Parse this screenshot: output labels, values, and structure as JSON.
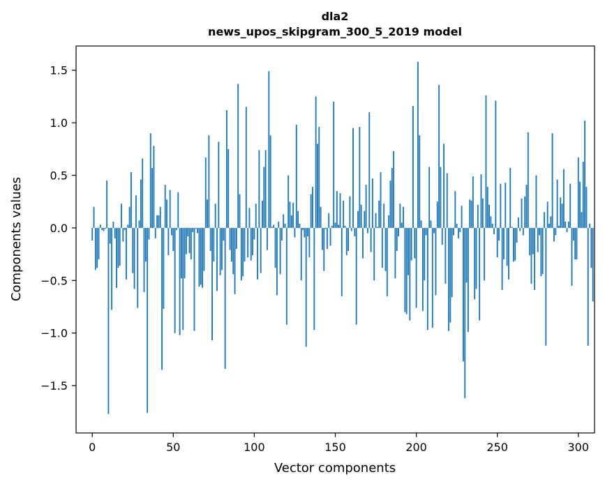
{
  "chart_data": {
    "type": "bar",
    "title_line1": "dla2",
    "title_line2": "news_upos_skipgram_300_5_2019 model",
    "xlabel": "Vector components",
    "ylabel": "Components values",
    "xlim": [
      -10,
      310
    ],
    "ylim": [
      -1.95,
      1.73
    ],
    "x_ticks": [
      0,
      50,
      100,
      150,
      200,
      250,
      300
    ],
    "x_tick_labels": [
      "0",
      "50",
      "100",
      "150",
      "200",
      "250",
      "300"
    ],
    "y_ticks": [
      -1.5,
      -1.0,
      -0.5,
      0.0,
      0.5,
      1.0,
      1.5
    ],
    "y_tick_labels": [
      "−1.5",
      "−1.0",
      "−0.5",
      "0.0",
      "0.5",
      "1.0",
      "1.5"
    ],
    "bar_color": "#1f77b4",
    "values": [
      -0.12,
      0.2,
      -0.4,
      -0.38,
      -0.3,
      0.03,
      -0.02,
      -0.03,
      -0.01,
      0.45,
      -1.77,
      -0.15,
      -0.78,
      0.06,
      -0.1,
      -0.57,
      -0.38,
      -0.36,
      0.23,
      -0.13,
      -0.02,
      -0.49,
      0.03,
      0.2,
      0.53,
      -0.43,
      -0.58,
      0.31,
      -0.76,
      0.07,
      0.46,
      0.66,
      -0.61,
      -0.32,
      -1.76,
      -0.11,
      0.9,
      0.57,
      0.78,
      -0.1,
      0.12,
      0.12,
      0.2,
      -1.35,
      -0.77,
      0.41,
      0.27,
      -0.26,
      0.36,
      -0.07,
      -0.22,
      -1.0,
      -0.02,
      0.34,
      -1.02,
      -0.48,
      -0.97,
      -0.48,
      -0.25,
      -0.08,
      -0.24,
      -0.3,
      -0.04,
      -0.98,
      -0.01,
      -0.05,
      -0.56,
      -0.54,
      -0.57,
      -0.41,
      0.67,
      0.27,
      0.88,
      -0.22,
      -1.07,
      -0.32,
      0.23,
      -0.6,
      0.82,
      -0.45,
      -0.4,
      -0.12,
      -1.34,
      1.12,
      0.75,
      -0.21,
      -0.32,
      -0.44,
      -0.63,
      -0.2,
      1.37,
      0.32,
      -0.5,
      -0.46,
      -0.32,
      1.15,
      -0.28,
      0.19,
      -0.31,
      -0.26,
      -0.11,
      0.23,
      -0.49,
      0.74,
      -0.43,
      0.26,
      0.58,
      0.74,
      -0.21,
      1.49,
      0.88,
      0.01,
      0.03,
      -0.38,
      -0.64,
      0.06,
      -0.44,
      -0.12,
      0.13,
      0.04,
      -0.92,
      0.5,
      0.25,
      0.12,
      0.24,
      -0.09,
      0.98,
      0.16,
      0.04,
      -0.5,
      -0.02,
      -0.09,
      -1.13,
      -0.08,
      -0.28,
      0.32,
      0.39,
      -0.97,
      1.25,
      0.8,
      0.96,
      0.2,
      -0.21,
      -0.41,
      -0.01,
      -0.2,
      0.14,
      -0.17,
      0.02,
      1.2,
      0.05,
      0.35,
      0.03,
      0.33,
      -0.65,
      0.26,
      0.02,
      -0.26,
      -0.22,
      0.3,
      -0.03,
      0.95,
      -0.08,
      -0.92,
      0.16,
      0.96,
      0.22,
      -0.29,
      0.16,
      0.41,
      -0.05,
      1.1,
      -0.23,
      0.47,
      -0.5,
      0.14,
      0.01,
      0.26,
      0.53,
      -0.38,
      0.23,
      -0.41,
      -0.65,
      0.12,
      0.45,
      0.57,
      0.73,
      -0.48,
      -0.22,
      -0.08,
      0.23,
      0.05,
      0.2,
      -0.8,
      -0.82,
      -0.45,
      -0.88,
      -0.31,
      1.16,
      -0.29,
      -0.76,
      1.58,
      0.88,
      0.07,
      -0.79,
      -0.5,
      -0.07,
      -0.97,
      0.58,
      0.07,
      -0.95,
      -0.05,
      -0.64,
      0.25,
      1.36,
      0.58,
      -0.16,
      0.8,
      -0.53,
      0.52,
      -0.98,
      -0.9,
      -0.66,
      -0.07,
      0.35,
      0.04,
      -0.1,
      -0.04,
      0.21,
      -1.27,
      -1.62,
      -0.52,
      -0.99,
      0.27,
      0.26,
      0.49,
      -0.68,
      -0.58,
      0.22,
      -0.88,
      0.51,
      0.28,
      -0.5,
      1.26,
      0.39,
      0.22,
      0.11,
      0.04,
      -0.06,
      1.21,
      -0.28,
      -0.12,
      0.42,
      -0.59,
      -0.3,
      0.43,
      -0.36,
      -0.49,
      0.57,
      0.01,
      -0.32,
      -0.31,
      -0.14,
      0.1,
      -0.03,
      0.28,
      -0.07,
      0.3,
      0.41,
      0.91,
      -0.26,
      -0.53,
      -0.25,
      -0.59,
      0.5,
      -0.23,
      -0.07,
      -0.46,
      -0.44,
      0.15,
      -1.12,
      0.25,
      0.04,
      0.11,
      0.9,
      -0.13,
      -0.07,
      0.46,
      0.02,
      0.29,
      0.23,
      0.56,
      0.06,
      -0.04,
      0.06,
      0.42,
      -0.55,
      -0.12,
      -0.3,
      -0.3,
      0.67,
      0.44,
      0.15,
      0.63,
      1.02,
      0.39,
      -1.12,
      0.04,
      -0.38,
      -0.7
    ]
  }
}
